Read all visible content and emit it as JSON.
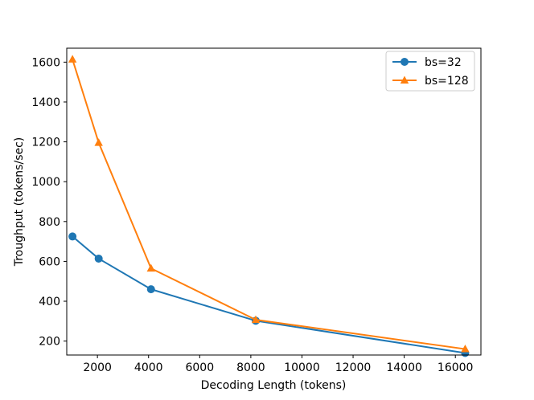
{
  "chart_data": {
    "type": "line",
    "title": "",
    "xlabel": "Decoding Length (tokens)",
    "ylabel": "Troughput (tokens/sec)",
    "xlim": [
      800,
      17000
    ],
    "ylim": [
      130,
      1670
    ],
    "xticks": [
      2000,
      4000,
      6000,
      8000,
      10000,
      12000,
      14000,
      16000
    ],
    "yticks": [
      200,
      400,
      600,
      800,
      1000,
      1200,
      1400,
      1600
    ],
    "x": [
      1024,
      2048,
      4096,
      8192,
      16384
    ],
    "series": [
      {
        "name": "bs=32",
        "values": [
          725,
          614,
          460,
          302,
          140
        ],
        "color": "#1f77b4",
        "marker": "circle"
      },
      {
        "name": "bs=128",
        "values": [
          1614,
          1196,
          565,
          307,
          160
        ],
        "color": "#ff7f0e",
        "marker": "triangle"
      }
    ],
    "legend": "upper right",
    "grid": false
  }
}
